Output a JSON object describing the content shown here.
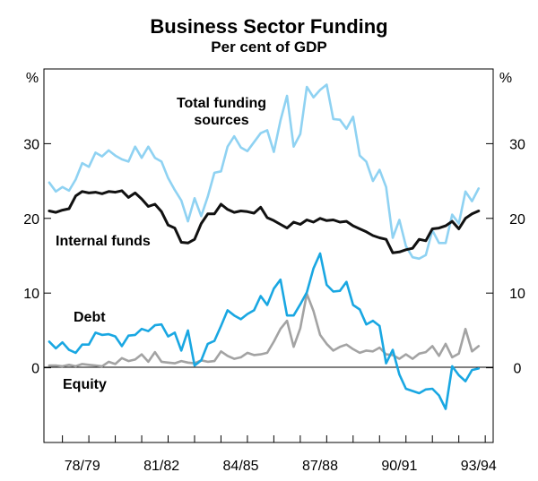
{
  "chart_data": {
    "type": "line",
    "title": "Business Sector Funding",
    "subtitle": "Per cent of GDP",
    "y_unit_left": "%",
    "y_unit_right": "%",
    "ylim": [
      -10,
      40
    ],
    "yticks": [
      0,
      10,
      20,
      30
    ],
    "xlim": [
      1977.3,
      1994.3
    ],
    "xticks": [
      {
        "label": "78/79",
        "value": 1978.75
      },
      {
        "label": "81/82",
        "value": 1981.75
      },
      {
        "label": "84/85",
        "value": 1984.75
      },
      {
        "label": "87/88",
        "value": 1987.75
      },
      {
        "label": "90/91",
        "value": 1990.75
      },
      {
        "label": "93/94",
        "value": 1993.75
      }
    ],
    "x_start": 1977.5,
    "x_step": 0.25,
    "series": [
      {
        "name": "Total funding sources",
        "label_lines": [
          "Total funding",
          "sources"
        ],
        "color": "#8fd2f2",
        "values": [
          24.8,
          23.6,
          24.2,
          23.7,
          25.2,
          27.4,
          26.9,
          28.8,
          28.3,
          29.1,
          28.4,
          27.9,
          27.6,
          29.6,
          28.1,
          29.6,
          28.1,
          27.6,
          25.4,
          23.8,
          22.4,
          19.6,
          22.7,
          20.3,
          22.9,
          26.1,
          26.3,
          29.6,
          31.0,
          29.5,
          29.0,
          30.2,
          31.4,
          31.8,
          28.9,
          33.1,
          36.4,
          29.6,
          31.3,
          37.6,
          36.2,
          37.2,
          37.9,
          33.3,
          33.2,
          32.0,
          33.6,
          28.4,
          27.6,
          25.0,
          26.5,
          24.2,
          17.4,
          19.8,
          16.3,
          14.8,
          14.6,
          15.1,
          18.4,
          16.7,
          16.7,
          20.5,
          19.3,
          23.6,
          22.3,
          24.0
        ]
      },
      {
        "name": "Internal funds",
        "label_lines": [
          "Internal funds"
        ],
        "color": "#111111",
        "values": [
          21.0,
          20.8,
          21.1,
          21.3,
          23.0,
          23.6,
          23.4,
          23.5,
          23.3,
          23.6,
          23.5,
          23.7,
          22.8,
          23.4,
          22.6,
          21.6,
          21.9,
          20.9,
          19.1,
          18.7,
          16.8,
          16.7,
          17.2,
          19.3,
          20.6,
          20.6,
          21.9,
          21.2,
          20.8,
          21.0,
          20.9,
          20.7,
          21.5,
          20.1,
          19.7,
          19.2,
          18.7,
          19.5,
          19.2,
          19.8,
          19.5,
          20.0,
          19.7,
          19.8,
          19.5,
          19.6,
          19.0,
          18.6,
          18.2,
          17.7,
          17.4,
          17.2,
          15.4,
          15.5,
          15.8,
          16.0,
          17.2,
          17.0,
          18.6,
          18.7,
          19.0,
          19.6,
          18.6,
          20.0,
          20.6,
          21.0
        ]
      },
      {
        "name": "Debt",
        "label_lines": [
          "Debt"
        ],
        "color": "#19a7e2",
        "values": [
          3.5,
          2.6,
          3.4,
          2.4,
          2.0,
          3.1,
          3.1,
          4.7,
          4.4,
          4.5,
          4.2,
          2.9,
          4.3,
          4.4,
          5.2,
          4.9,
          5.7,
          5.8,
          4.2,
          4.7,
          2.3,
          5.0,
          0.3,
          1.0,
          3.2,
          3.6,
          5.6,
          7.7,
          7.0,
          6.5,
          7.2,
          7.7,
          9.6,
          8.4,
          10.6,
          11.8,
          7.0,
          7.0,
          8.5,
          10.1,
          13.3,
          15.3,
          11.1,
          10.2,
          10.3,
          11.5,
          8.4,
          7.8,
          5.8,
          6.3,
          5.6,
          0.6,
          2.4,
          -0.9,
          -2.8,
          -3.1,
          -3.4,
          -2.9,
          -2.8,
          -3.7,
          -5.5,
          0.2,
          -1.0,
          -1.8,
          -0.3,
          -0.1
        ]
      },
      {
        "name": "Equity",
        "label_lines": [
          "Equity"
        ],
        "color": "#a3a3a3",
        "values": [
          0.3,
          0.3,
          0.2,
          0.4,
          0.2,
          0.5,
          0.4,
          0.3,
          0.2,
          0.8,
          0.5,
          1.3,
          0.9,
          1.1,
          1.8,
          0.8,
          2.1,
          0.8,
          0.7,
          0.6,
          0.9,
          0.7,
          0.6,
          1.0,
          0.8,
          0.9,
          2.2,
          1.6,
          1.2,
          1.4,
          2.0,
          1.7,
          1.8,
          2.0,
          3.5,
          5.2,
          6.3,
          2.8,
          5.3,
          9.9,
          7.6,
          4.4,
          3.2,
          2.3,
          2.8,
          3.1,
          2.5,
          2.0,
          2.3,
          2.2,
          2.7,
          1.8,
          1.7,
          1.2,
          1.8,
          1.2,
          1.9,
          2.1,
          2.9,
          1.6,
          3.2,
          1.4,
          1.9,
          5.2,
          2.2,
          2.9
        ]
      }
    ]
  }
}
